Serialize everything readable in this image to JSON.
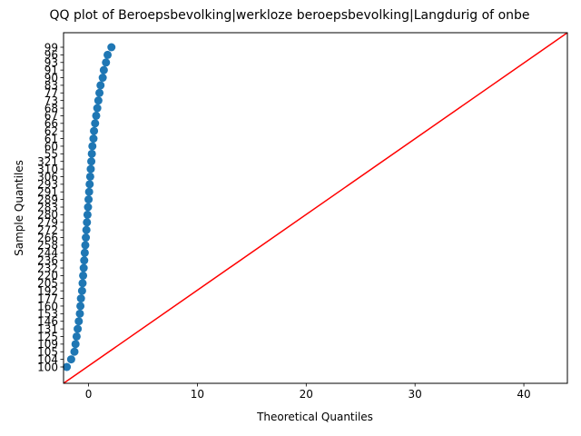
{
  "chart_data": {
    "type": "scatter",
    "title": "QQ plot of Beroepsbevolking|werkloze beroepsbevolking|Langdurig of onbe",
    "xlabel": "Theoretical Quantiles",
    "ylabel": "Sample Quantiles",
    "xlim": [
      -2.3,
      44
    ],
    "x_ticks": [
      0,
      10,
      20,
      30,
      40
    ],
    "y_ticks": [
      "100",
      "104",
      "105",
      "109",
      "125",
      "131",
      "146",
      "153",
      "160",
      "177",
      "192",
      "205",
      "220",
      "232",
      "236",
      "244",
      "258",
      "266",
      "272",
      "279",
      "280",
      "283",
      "289",
      "291",
      "293",
      "306",
      "310",
      "321",
      "55",
      "60",
      "61",
      "62",
      "66",
      "67",
      "68",
      "73",
      "77",
      "83",
      "90",
      "91",
      "93",
      "96",
      "99"
    ],
    "points": [
      {
        "x": -2.0,
        "y": "100"
      },
      {
        "x": -1.6,
        "y": "104"
      },
      {
        "x": -1.3,
        "y": "105"
      },
      {
        "x": -1.2,
        "y": "109"
      },
      {
        "x": -1.1,
        "y": "125"
      },
      {
        "x": -1.0,
        "y": "131"
      },
      {
        "x": -0.9,
        "y": "146"
      },
      {
        "x": -0.8,
        "y": "153"
      },
      {
        "x": -0.75,
        "y": "160"
      },
      {
        "x": -0.7,
        "y": "177"
      },
      {
        "x": -0.6,
        "y": "192"
      },
      {
        "x": -0.55,
        "y": "205"
      },
      {
        "x": -0.5,
        "y": "220"
      },
      {
        "x": -0.45,
        "y": "232"
      },
      {
        "x": -0.4,
        "y": "236"
      },
      {
        "x": -0.35,
        "y": "244"
      },
      {
        "x": -0.3,
        "y": "258"
      },
      {
        "x": -0.25,
        "y": "266"
      },
      {
        "x": -0.2,
        "y": "272"
      },
      {
        "x": -0.15,
        "y": "279"
      },
      {
        "x": -0.1,
        "y": "280"
      },
      {
        "x": -0.05,
        "y": "283"
      },
      {
        "x": 0.0,
        "y": "289"
      },
      {
        "x": 0.05,
        "y": "291"
      },
      {
        "x": 0.1,
        "y": "293"
      },
      {
        "x": 0.15,
        "y": "306"
      },
      {
        "x": 0.2,
        "y": "310"
      },
      {
        "x": 0.25,
        "y": "321"
      },
      {
        "x": 0.3,
        "y": "55"
      },
      {
        "x": 0.35,
        "y": "60"
      },
      {
        "x": 0.45,
        "y": "61"
      },
      {
        "x": 0.5,
        "y": "62"
      },
      {
        "x": 0.6,
        "y": "66"
      },
      {
        "x": 0.7,
        "y": "67"
      },
      {
        "x": 0.8,
        "y": "68"
      },
      {
        "x": 0.9,
        "y": "73"
      },
      {
        "x": 1.0,
        "y": "77"
      },
      {
        "x": 1.1,
        "y": "83"
      },
      {
        "x": 1.3,
        "y": "90"
      },
      {
        "x": 1.4,
        "y": "91"
      },
      {
        "x": 1.6,
        "y": "93"
      },
      {
        "x": 1.75,
        "y": "96"
      },
      {
        "x": 2.1,
        "y": "99"
      }
    ],
    "reference_line": {
      "color": "#ff0000",
      "from": [
        -2.3,
        -2.3
      ],
      "to": [
        44,
        44
      ]
    },
    "marker_color": "#1f77b4",
    "grid": false
  }
}
